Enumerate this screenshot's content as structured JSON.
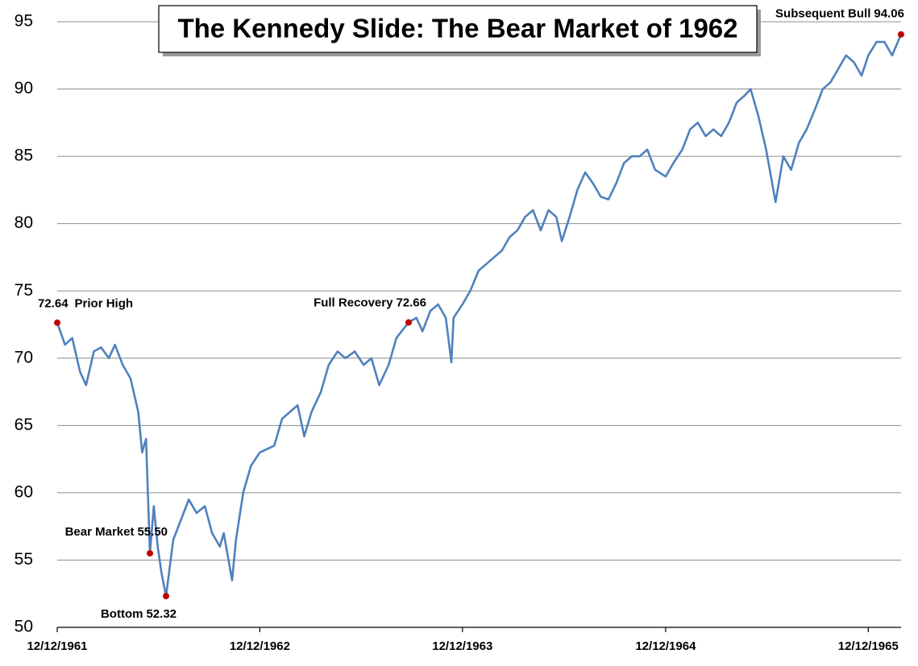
{
  "chart_data": {
    "type": "line",
    "title": "The Kennedy Slide: The Bear Market of 1962",
    "color": "#4f81bd",
    "marker_color": "#c00000",
    "grid": true,
    "ylim": [
      50,
      95
    ],
    "yticks": [
      50,
      55,
      60,
      65,
      70,
      75,
      80,
      85,
      90,
      95
    ],
    "xlim": [
      "1961-12-12",
      "1966-02-12"
    ],
    "xticks": [
      {
        "value": "1961-12-12",
        "label": "12/12/1961"
      },
      {
        "value": "1962-12-12",
        "label": "12/12/1962"
      },
      {
        "value": "1963-12-12",
        "label": "12/12/1963"
      },
      {
        "value": "1964-12-12",
        "label": "12/12/1964"
      },
      {
        "value": "1965-12-12",
        "label": "12/12/1965"
      }
    ],
    "x": [
      "1961-12-12",
      "1961-12-26",
      "1962-01-08",
      "1962-01-22",
      "1962-02-02",
      "1962-02-16",
      "1962-03-01",
      "1962-03-15",
      "1962-03-26",
      "1962-04-09",
      "1962-04-23",
      "1962-05-07",
      "1962-05-14",
      "1962-05-21",
      "1962-05-28",
      "1962-06-04",
      "1962-06-11",
      "1962-06-18",
      "1962-06-26",
      "1962-07-09",
      "1962-07-23",
      "1962-08-06",
      "1962-08-20",
      "1962-09-04",
      "1962-09-17",
      "1962-10-01",
      "1962-10-08",
      "1962-10-23",
      "1962-10-30",
      "1962-11-12",
      "1962-11-26",
      "1962-12-12",
      "1963-01-07",
      "1963-01-21",
      "1963-02-04",
      "1963-02-18",
      "1963-03-02",
      "1963-03-15",
      "1963-04-01",
      "1963-04-15",
      "1963-05-01",
      "1963-05-15",
      "1963-06-01",
      "1963-06-17",
      "1963-07-01",
      "1963-07-15",
      "1963-08-01",
      "1963-08-15",
      "1963-09-06",
      "1963-09-20",
      "1963-10-01",
      "1963-10-15",
      "1963-10-29",
      "1963-11-12",
      "1963-11-22",
      "1963-11-26",
      "1963-12-12",
      "1963-12-26",
      "1964-01-10",
      "1964-01-24",
      "1964-02-07",
      "1964-02-21",
      "1964-03-06",
      "1964-03-20",
      "1964-04-03",
      "1964-04-17",
      "1964-05-01",
      "1964-05-15",
      "1964-05-29",
      "1964-06-08",
      "1964-06-22",
      "1964-07-06",
      "1964-07-20",
      "1964-08-03",
      "1964-08-17",
      "1964-08-31",
      "1964-09-14",
      "1964-09-28",
      "1964-10-12",
      "1964-10-26",
      "1964-11-09",
      "1964-11-23",
      "1964-12-12",
      "1964-12-26",
      "1965-01-11",
      "1965-01-25",
      "1965-02-08",
      "1965-02-22",
      "1965-03-08",
      "1965-03-22",
      "1965-04-05",
      "1965-04-19",
      "1965-05-03",
      "1965-05-14",
      "1965-05-28",
      "1965-06-11",
      "1965-06-28",
      "1965-07-12",
      "1965-07-26",
      "1965-08-09",
      "1965-08-23",
      "1965-09-07",
      "1965-09-21",
      "1965-10-05",
      "1965-10-19",
      "1965-11-02",
      "1965-11-16",
      "1965-11-30",
      "1965-12-12",
      "1965-12-27",
      "1966-01-10",
      "1966-01-24",
      "1966-02-09"
    ],
    "values": [
      72.64,
      71.0,
      71.5,
      69.0,
      68.0,
      70.5,
      70.8,
      70.0,
      71.0,
      69.5,
      68.5,
      66.0,
      63.0,
      64.0,
      55.5,
      59.0,
      56.0,
      54.0,
      52.32,
      56.5,
      58.0,
      59.5,
      58.5,
      59.0,
      57.0,
      56.0,
      57.0,
      53.5,
      56.5,
      60.0,
      62.0,
      63.0,
      63.5,
      65.5,
      66.0,
      66.5,
      64.2,
      66.0,
      67.5,
      69.5,
      70.5,
      70.0,
      70.5,
      69.5,
      70.0,
      68.0,
      69.5,
      71.5,
      72.66,
      73.0,
      72.0,
      73.5,
      74.0,
      73.0,
      69.7,
      73.0,
      74.0,
      75.0,
      76.5,
      77.0,
      77.5,
      78.0,
      79.0,
      79.5,
      80.5,
      81.0,
      79.5,
      81.0,
      80.5,
      78.7,
      80.5,
      82.5,
      83.8,
      83.0,
      82.0,
      81.8,
      83.0,
      84.5,
      85.0,
      85.0,
      85.5,
      84.0,
      83.5,
      84.5,
      85.5,
      87.0,
      87.5,
      86.5,
      87.0,
      86.5,
      87.5,
      89.0,
      89.5,
      90.0,
      88.0,
      85.5,
      81.6,
      85.0,
      84.0,
      86.0,
      87.0,
      88.5,
      90.0,
      90.5,
      91.5,
      92.5,
      92.0,
      91.0,
      92.5,
      93.5,
      93.5,
      92.5,
      94.06
    ],
    "annotations": [
      {
        "text": "Prior High",
        "x": "1961-12-12",
        "value": 72.64
      },
      {
        "text": "Bear Market",
        "x": "1962-05-28",
        "value": 55.5,
        "value_label": "55.50"
      },
      {
        "text": "Bottom",
        "x": "1962-06-26",
        "value": 52.32
      },
      {
        "text": "Full Recovery",
        "x": "1963-09-06",
        "value": 72.66
      },
      {
        "text": "Subsequent Bull",
        "x": "1966-02-09",
        "value": 94.06
      }
    ]
  }
}
